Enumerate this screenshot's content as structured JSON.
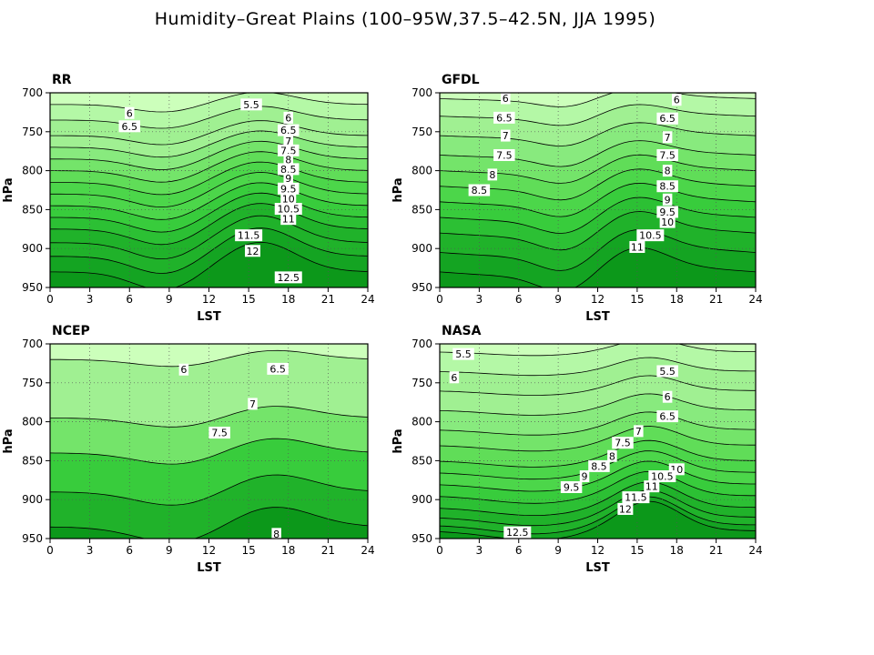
{
  "figure_title": "Humidity–Great Plains (100–95W,37.5–42.5N, JJA 1995)",
  "chart_data": [
    {
      "type": "heatmap",
      "title": "RR",
      "xlabel": "LST",
      "ylabel": "hPa",
      "xlim": [
        0,
        24
      ],
      "ylim": [
        700,
        950
      ],
      "xticks": [
        "0",
        "3",
        "6",
        "9",
        "12",
        "15",
        "18",
        "21",
        "24"
      ],
      "yticks": [
        "700",
        "750",
        "800",
        "850",
        "900",
        "950"
      ],
      "levels": [
        5.5,
        6,
        6.5,
        7,
        7.5,
        8,
        8.5,
        9,
        9.5,
        10,
        10.5,
        11,
        11.5,
        12,
        12.5
      ],
      "contour_labels": [
        {
          "text": "5.5",
          "x": 15.2,
          "p": 715
        },
        {
          "text": "6",
          "x": 6.0,
          "p": 726
        },
        {
          "text": "6.5",
          "x": 6.0,
          "p": 743
        },
        {
          "text": "6",
          "x": 18.0,
          "p": 732
        },
        {
          "text": "6.5",
          "x": 18.0,
          "p": 748
        },
        {
          "text": "7",
          "x": 18.0,
          "p": 762
        },
        {
          "text": "7.5",
          "x": 18.0,
          "p": 774
        },
        {
          "text": "8",
          "x": 18.0,
          "p": 786
        },
        {
          "text": "8.5",
          "x": 18.0,
          "p": 798
        },
        {
          "text": "9",
          "x": 18.0,
          "p": 810
        },
        {
          "text": "9.5",
          "x": 18.0,
          "p": 823
        },
        {
          "text": "10",
          "x": 18.0,
          "p": 836
        },
        {
          "text": "10.5",
          "x": 18.0,
          "p": 849
        },
        {
          "text": "11",
          "x": 18.0,
          "p": 862
        },
        {
          "text": "11.5",
          "x": 15.0,
          "p": 883
        },
        {
          "text": "12",
          "x": 15.3,
          "p": 903
        },
        {
          "text": "12.5",
          "x": 18.0,
          "p": 937
        }
      ]
    },
    {
      "type": "heatmap",
      "title": "GFDL",
      "xlabel": "LST",
      "ylabel": "hPa",
      "xlim": [
        0,
        24
      ],
      "ylim": [
        700,
        950
      ],
      "xticks": [
        "0",
        "3",
        "6",
        "9",
        "12",
        "15",
        "18",
        "21",
        "24"
      ],
      "yticks": [
        "700",
        "750",
        "800",
        "850",
        "900",
        "950"
      ],
      "levels": [
        6,
        6.5,
        7,
        7.5,
        8,
        8.5,
        9,
        9.5,
        10,
        10.5,
        11
      ],
      "contour_labels": [
        {
          "text": "6",
          "x": 5.0,
          "p": 707
        },
        {
          "text": "6",
          "x": 18.0,
          "p": 709
        },
        {
          "text": "6.5",
          "x": 4.9,
          "p": 732
        },
        {
          "text": "6.5",
          "x": 17.3,
          "p": 733
        },
        {
          "text": "7",
          "x": 5.0,
          "p": 755
        },
        {
          "text": "7",
          "x": 17.3,
          "p": 757
        },
        {
          "text": "7.5",
          "x": 4.9,
          "p": 780
        },
        {
          "text": "7.5",
          "x": 17.3,
          "p": 780
        },
        {
          "text": "8",
          "x": 4.0,
          "p": 805
        },
        {
          "text": "8",
          "x": 17.3,
          "p": 800
        },
        {
          "text": "8.5",
          "x": 3.0,
          "p": 825
        },
        {
          "text": "8.5",
          "x": 17.3,
          "p": 820
        },
        {
          "text": "9",
          "x": 17.3,
          "p": 837
        },
        {
          "text": "9.5",
          "x": 17.3,
          "p": 853
        },
        {
          "text": "10",
          "x": 17.3,
          "p": 866
        },
        {
          "text": "10.5",
          "x": 16.0,
          "p": 883
        },
        {
          "text": "11",
          "x": 15.0,
          "p": 898
        }
      ]
    },
    {
      "type": "heatmap",
      "title": "NCEP",
      "xlabel": "LST",
      "ylabel": "hPa",
      "xlim": [
        0,
        24
      ],
      "ylim": [
        700,
        950
      ],
      "xticks": [
        "0",
        "3",
        "6",
        "9",
        "12",
        "15",
        "18",
        "21",
        "24"
      ],
      "yticks": [
        "700",
        "750",
        "800",
        "850",
        "900",
        "950"
      ],
      "levels": [
        6,
        6.5,
        7,
        7.5,
        8
      ],
      "contour_labels": [
        {
          "text": "6",
          "x": 10.1,
          "p": 733
        },
        {
          "text": "6.5",
          "x": 17.2,
          "p": 732
        },
        {
          "text": "7",
          "x": 15.3,
          "p": 777
        },
        {
          "text": "7.5",
          "x": 12.8,
          "p": 814
        },
        {
          "text": "8",
          "x": 17.1,
          "p": 944
        }
      ]
    },
    {
      "type": "heatmap",
      "title": "NASA",
      "xlabel": "LST",
      "ylabel": "hPa",
      "xlim": [
        0,
        24
      ],
      "ylim": [
        700,
        950
      ],
      "xticks": [
        "0",
        "3",
        "6",
        "9",
        "12",
        "15",
        "18",
        "21",
        "24"
      ],
      "yticks": [
        "700",
        "750",
        "800",
        "850",
        "900",
        "950"
      ],
      "levels": [
        5.5,
        6,
        6.5,
        7,
        7.5,
        8,
        8.5,
        9,
        9.5,
        10,
        10.5,
        11,
        11.5,
        12,
        12.5
      ],
      "contour_labels": [
        {
          "text": "5.5",
          "x": 1.8,
          "p": 713
        },
        {
          "text": "6",
          "x": 1.1,
          "p": 743
        },
        {
          "text": "5.5",
          "x": 17.3,
          "p": 735
        },
        {
          "text": "6",
          "x": 17.3,
          "p": 768
        },
        {
          "text": "6.5",
          "x": 17.3,
          "p": 793
        },
        {
          "text": "7",
          "x": 15.1,
          "p": 812
        },
        {
          "text": "7.5",
          "x": 13.9,
          "p": 827
        },
        {
          "text": "8",
          "x": 13.1,
          "p": 844
        },
        {
          "text": "8.5",
          "x": 12.1,
          "p": 857
        },
        {
          "text": "9",
          "x": 11.0,
          "p": 870
        },
        {
          "text": "9.5",
          "x": 10.0,
          "p": 884
        },
        {
          "text": "10",
          "x": 18.0,
          "p": 861
        },
        {
          "text": "10.5",
          "x": 16.9,
          "p": 870
        },
        {
          "text": "11",
          "x": 16.1,
          "p": 883
        },
        {
          "text": "11.5",
          "x": 14.9,
          "p": 897
        },
        {
          "text": "12",
          "x": 14.1,
          "p": 912
        },
        {
          "text": "12.5",
          "x": 5.9,
          "p": 942
        }
      ]
    }
  ],
  "fill_colors": [
    "#ccffbb",
    "#b4f8a6",
    "#a0f092",
    "#88ea7e",
    "#74e46a",
    "#60dd58",
    "#4cd64a",
    "#38cc3c",
    "#2cc034",
    "#20b22a",
    "#14a422",
    "#0c981a"
  ]
}
